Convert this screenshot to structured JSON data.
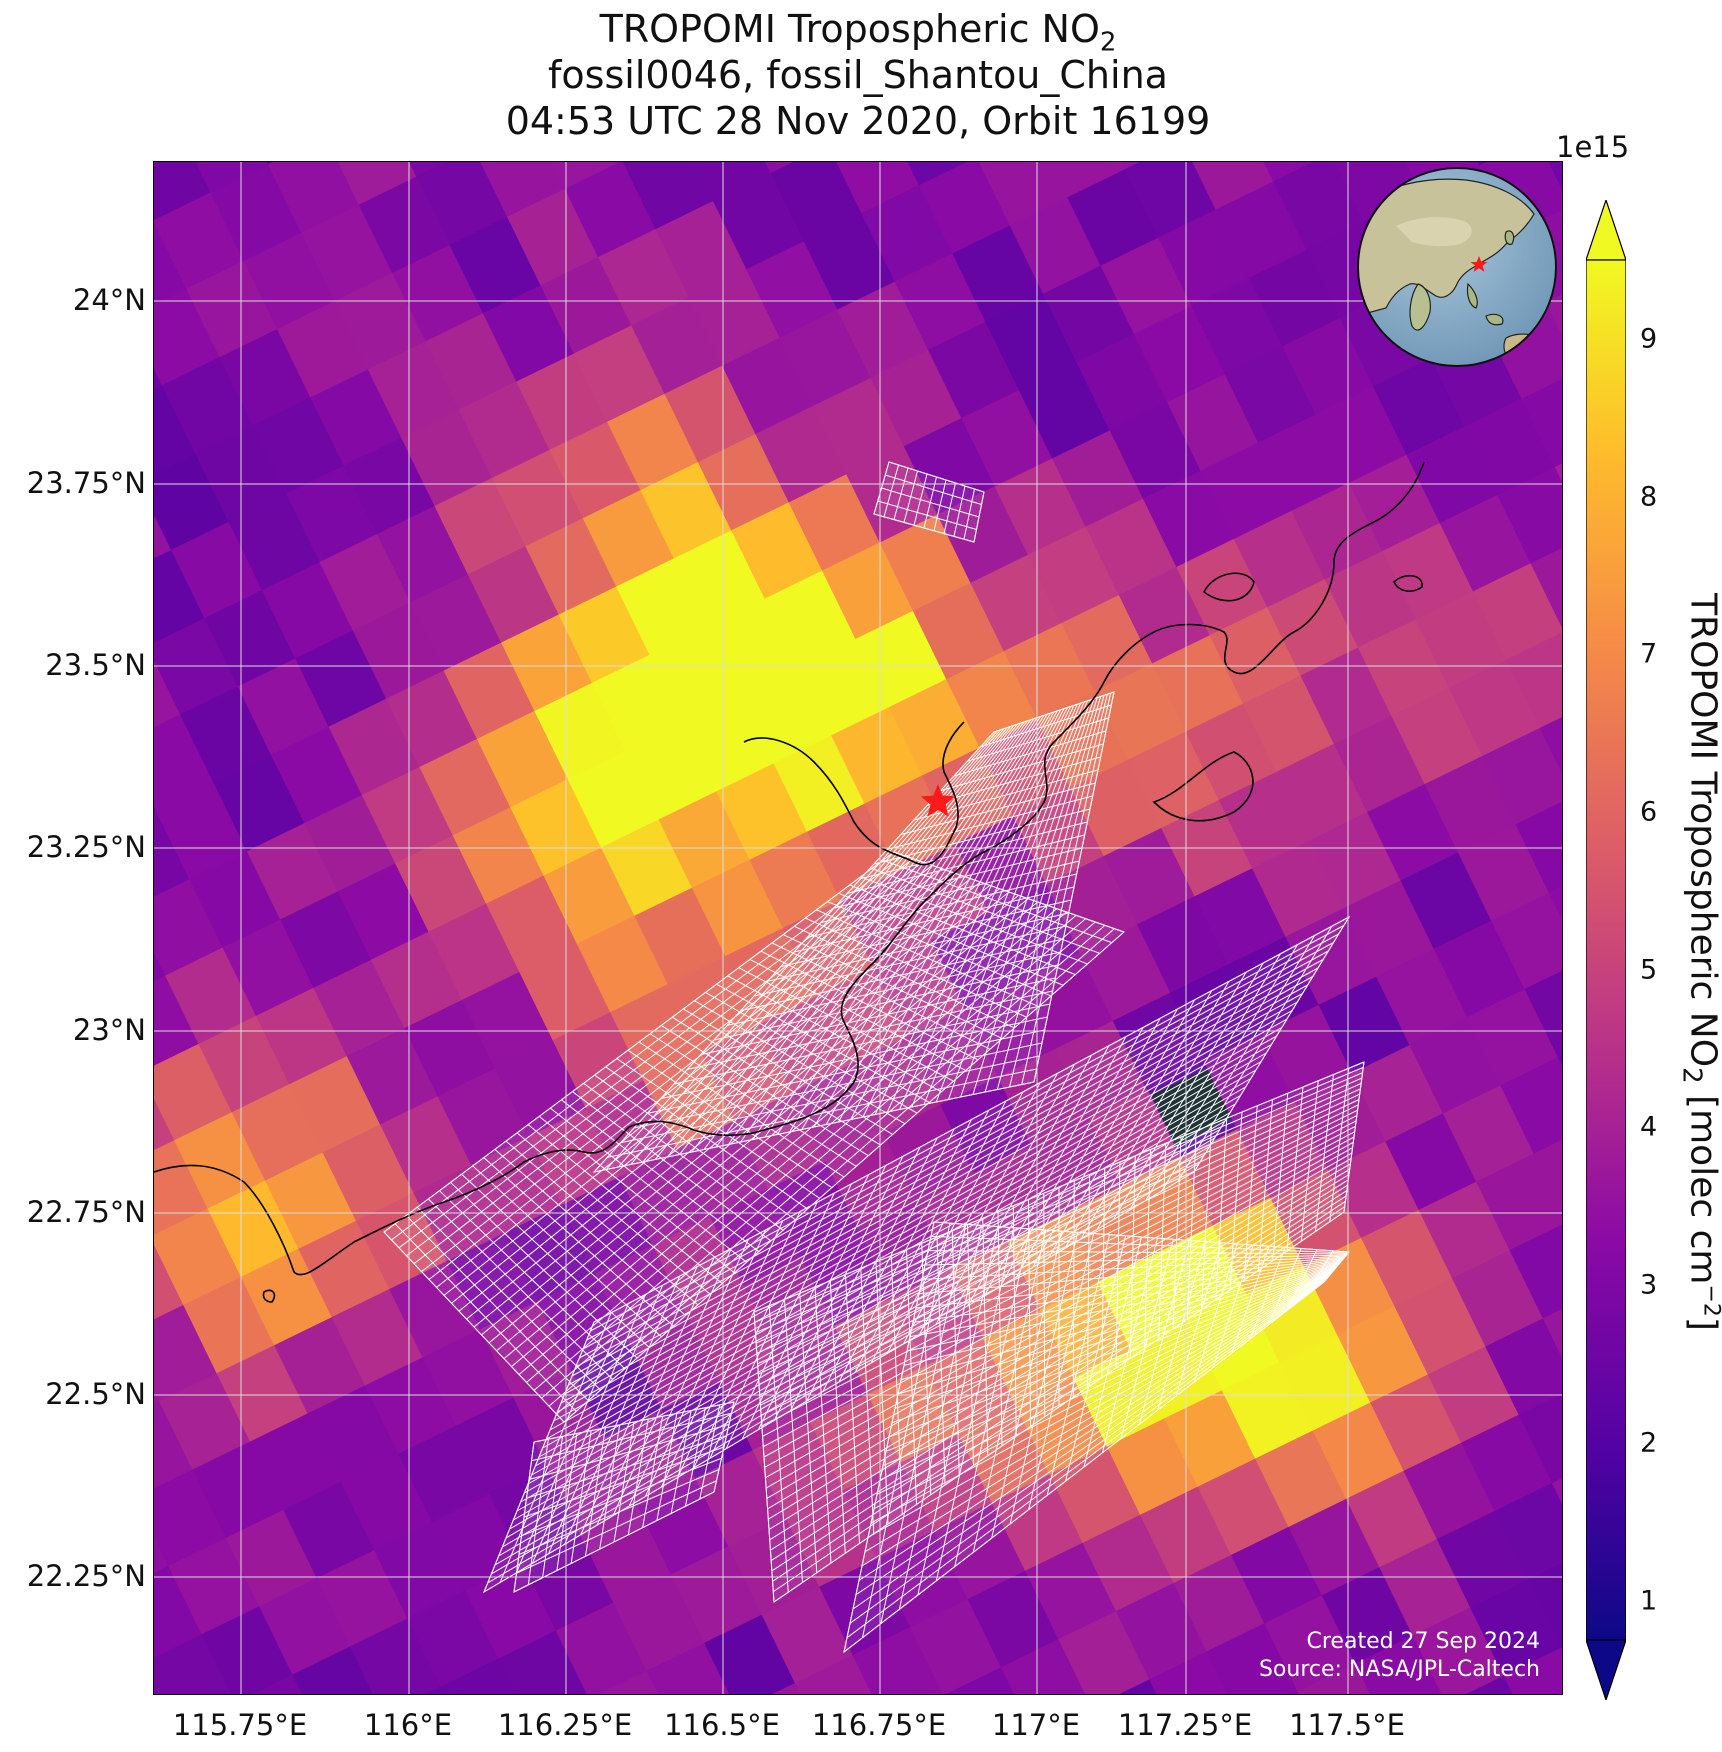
{
  "title": {
    "line1_prefix": "TROPOMI Tropospheric NO",
    "line1_sub": "2",
    "line2": "fossil0046, fossil_Shantou_China",
    "line3": "04:53 UTC 28 Nov 2020, Orbit 16199"
  },
  "map": {
    "lat_labels": [
      "24°N",
      "23.75°N",
      "23.5°N",
      "23.25°N",
      "23°N",
      "22.75°N",
      "22.5°N",
      "22.25°N"
    ],
    "lon_labels": [
      "115.75°E",
      "116°E",
      "116.25°E",
      "116.5°E",
      "116.75°E",
      "117°E",
      "117.25°E",
      "117.5°E"
    ],
    "target_marker": "red-star",
    "inset": "globe-locator"
  },
  "credit": {
    "line1": "Created 27 Sep 2024",
    "line2": "Source: NASA/JPL-Caltech"
  },
  "colorbar": {
    "exponent": "1e15",
    "ticks": [
      "1",
      "2",
      "3",
      "4",
      "5",
      "6",
      "7",
      "8",
      "9"
    ],
    "label_prefix": "TROPOMI Tropospheric NO",
    "label_sub": "2",
    "label_mid": " [molec cm",
    "label_sup": "−2",
    "label_suffix": "]",
    "colormap": "plasma",
    "min": 0.75,
    "max": 9.5,
    "extend": "both"
  },
  "colors": {
    "marker": "#ff1a1a",
    "grid": "#dddddd",
    "footprint": "#ffffff"
  }
}
